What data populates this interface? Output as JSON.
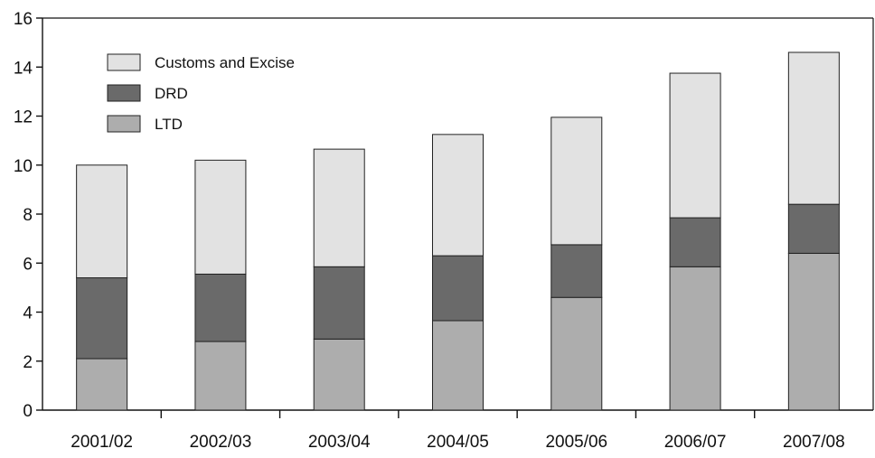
{
  "chart_data": {
    "type": "bar",
    "stacked": true,
    "title": "",
    "xlabel": "",
    "ylabel": "",
    "categories": [
      "2001/02",
      "2002/03",
      "2003/04",
      "2004/05",
      "2005/06",
      "2006/07",
      "2007/08"
    ],
    "series": [
      {
        "name": "LTD",
        "color": "#adadad",
        "values": [
          2.1,
          2.8,
          2.9,
          3.65,
          4.6,
          5.85,
          6.4
        ]
      },
      {
        "name": "DRD",
        "color": "#6a6a6a",
        "values": [
          3.3,
          2.75,
          2.95,
          2.65,
          2.15,
          2.0,
          2.0
        ]
      },
      {
        "name": "Customs and Excise",
        "color": "#e2e2e2",
        "values": [
          4.6,
          4.65,
          4.8,
          4.95,
          5.2,
          5.9,
          6.2
        ]
      }
    ],
    "legend_order": [
      "Customs and Excise",
      "DRD",
      "LTD"
    ],
    "legend_position": "top-left",
    "ylim": [
      0,
      16
    ],
    "yticks": [
      "0",
      "2",
      "4",
      "6",
      "8",
      "10",
      "12",
      "14",
      "16"
    ],
    "grid": false
  }
}
